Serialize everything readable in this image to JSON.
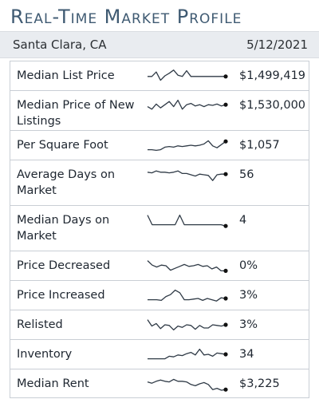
{
  "header": {
    "title": "Real-Time Market Profile",
    "location": "Santa Clara, CA",
    "date": "5/12/2021"
  },
  "metrics": [
    {
      "label": "Median List Price",
      "value": "$1,499,419",
      "spark": [
        0.55,
        0.55,
        0.2,
        0.85,
        0.5,
        0.3,
        0.05,
        0.45,
        0.55,
        0.1,
        0.55,
        0.55,
        0.55,
        0.55,
        0.55,
        0.55,
        0.55,
        0.55,
        0.55
      ]
    },
    {
      "label": "Median Price of New Listings",
      "value": "$1,530,000",
      "spark": [
        0.6,
        0.8,
        0.4,
        0.7,
        0.45,
        0.2,
        0.6,
        0.1,
        0.8,
        0.45,
        0.35,
        0.55,
        0.45,
        0.6,
        0.45,
        0.5,
        0.4,
        0.55,
        0.45
      ]
    },
    {
      "label": "Per Square Foot",
      "value": "$1,057",
      "spark": [
        0.85,
        0.85,
        0.9,
        0.85,
        0.65,
        0.6,
        0.65,
        0.55,
        0.6,
        0.55,
        0.5,
        0.55,
        0.5,
        0.4,
        0.15,
        0.55,
        0.7,
        0.45,
        0.2
      ]
    },
    {
      "label": "Average Days on Market",
      "value": "56",
      "spark": [
        0.3,
        0.35,
        0.2,
        0.3,
        0.3,
        0.35,
        0.3,
        0.2,
        0.4,
        0.4,
        0.5,
        0.6,
        0.45,
        0.5,
        0.55,
        0.95,
        0.5,
        0.45,
        0.45
      ]
    },
    {
      "label": "Median Days on Market",
      "value": "4",
      "spark": [
        0.1,
        0.85,
        0.85,
        0.85,
        0.85,
        0.85,
        0.85,
        0.1,
        0.85,
        0.85,
        0.85,
        0.85,
        0.85,
        0.85,
        0.85,
        0.85,
        0.85,
        0.95
      ]
    },
    {
      "label": "Price Decreased",
      "value": "0%",
      "spark": [
        0.1,
        0.45,
        0.6,
        0.45,
        0.5,
        0.85,
        0.7,
        0.55,
        0.4,
        0.55,
        0.5,
        0.4,
        0.55,
        0.5,
        0.75,
        0.6,
        0.9,
        0.9
      ]
    },
    {
      "label": "Price Increased",
      "value": "3%",
      "spark": [
        0.85,
        0.85,
        0.85,
        0.9,
        0.6,
        0.45,
        0.1,
        0.3,
        0.85,
        0.85,
        0.8,
        0.75,
        0.9,
        0.75,
        0.85,
        0.95,
        0.7,
        0.75
      ]
    },
    {
      "label": "Relisted",
      "value": "3%",
      "spark": [
        0.1,
        0.6,
        0.4,
        0.8,
        0.5,
        0.55,
        0.9,
        0.6,
        0.7,
        0.5,
        0.55,
        0.85,
        0.55,
        0.75,
        0.75,
        0.5,
        0.55,
        0.6,
        0.5
      ]
    },
    {
      "label": "Inventory",
      "value": "34",
      "spark": [
        0.85,
        0.85,
        0.85,
        0.85,
        0.85,
        0.65,
        0.7,
        0.55,
        0.6,
        0.45,
        0.35,
        0.55,
        0.1,
        0.55,
        0.5,
        0.65,
        0.4,
        0.45,
        0.5
      ]
    },
    {
      "label": "Median Rent",
      "value": "$3,225",
      "spark": [
        0.35,
        0.45,
        0.3,
        0.2,
        0.3,
        0.35,
        0.15,
        0.3,
        0.3,
        0.35,
        0.55,
        0.65,
        0.5,
        0.4,
        0.55,
        0.95,
        0.85,
        1.0,
        0.95
      ]
    }
  ],
  "colors": {
    "title": "#3f5a72",
    "spark": "#2f3a46",
    "border": "#c9ced5",
    "subbar": "#e9ecf0"
  }
}
